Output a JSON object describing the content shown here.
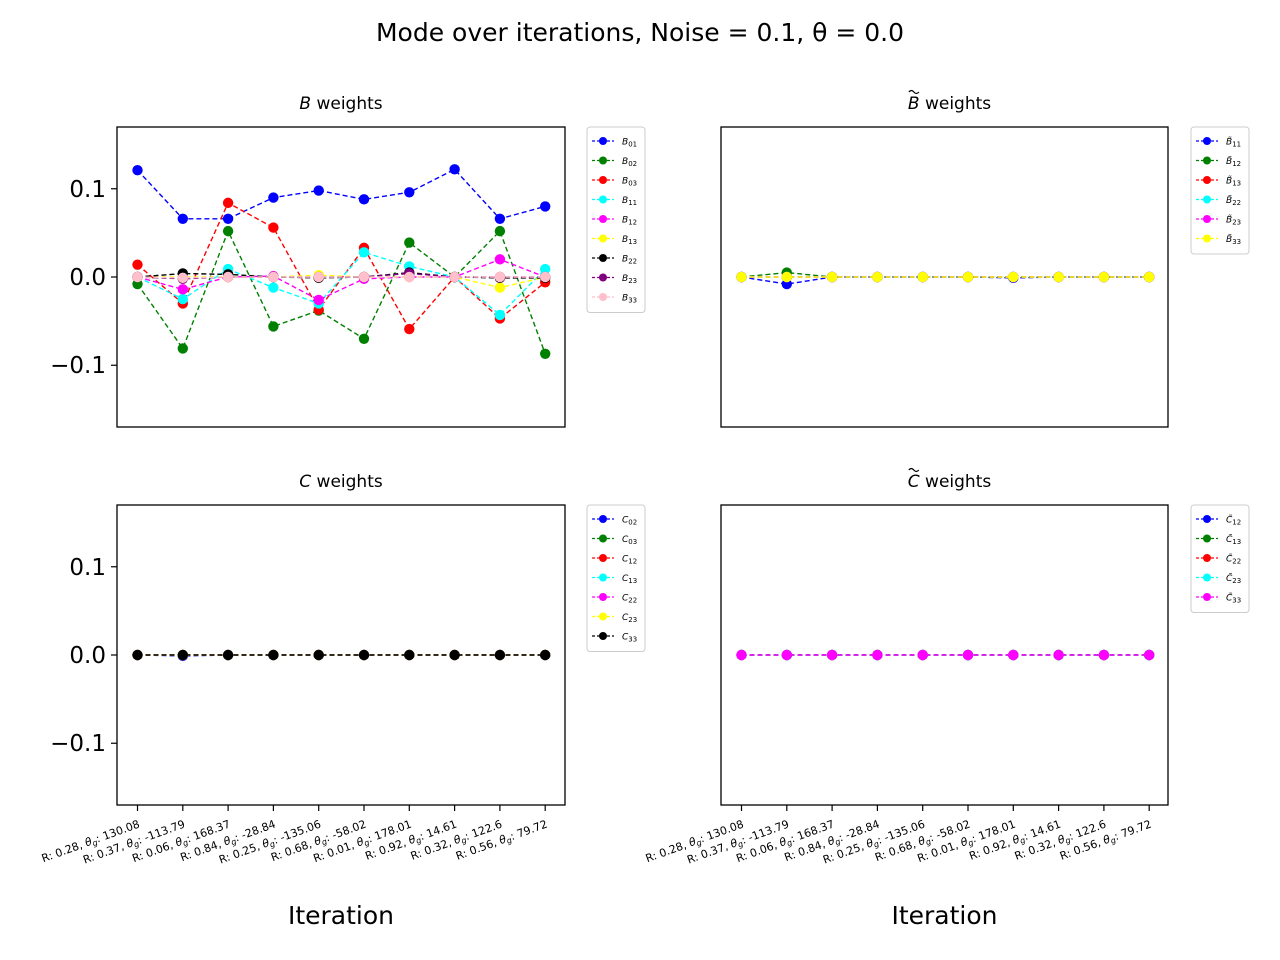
{
  "figure": {
    "title": "Mode over iterations, Noise = 0.1, θ = 0.0"
  },
  "chart_data": [
    {
      "id": "B",
      "type": "line",
      "title": "B weights",
      "title_sym": "B",
      "title_tilde": false,
      "title_rest": " weights",
      "xlabel": "",
      "ylabel": "",
      "ylim": [
        -0.17,
        0.17
      ],
      "yticks": [
        "0.1",
        "0.0",
        "−0.1"
      ],
      "ytick_values": [
        0.1,
        0.0,
        -0.1
      ],
      "show_xticklabels": false,
      "show_yticklabels": true,
      "legend_position": "outside-right",
      "categories": [
        "R: 0.28, θg: 130.08",
        "R: 0.37, θg: -113.79",
        "R: 0.06, θg: 168.37",
        "R: 0.84, θg: -28.84",
        "R: 0.25, θg: -135.06",
        "R: 0.68, θg: -58.02",
        "R: 0.01, θg: 178.01",
        "R: 0.92, θg: 14.61",
        "R: 0.32, θg: 122.6",
        "R: 0.56, θg: 79.72"
      ],
      "series": [
        {
          "name": "B01",
          "base": "B",
          "sub": "01",
          "tilde": false,
          "color": "#0000ff",
          "values": [
            0.121,
            0.066,
            0.066,
            0.09,
            0.098,
            0.088,
            0.096,
            0.122,
            0.066,
            0.08
          ]
        },
        {
          "name": "B02",
          "base": "B",
          "sub": "02",
          "tilde": false,
          "color": "#008000",
          "values": [
            -0.008,
            -0.081,
            0.052,
            -0.056,
            -0.038,
            -0.07,
            0.039,
            0.0,
            0.052,
            -0.087
          ]
        },
        {
          "name": "B03",
          "base": "B",
          "sub": "03",
          "tilde": false,
          "color": "#ff0000",
          "values": [
            0.014,
            -0.03,
            0.084,
            0.056,
            -0.037,
            0.033,
            -0.059,
            0.0,
            -0.047,
            -0.006
          ]
        },
        {
          "name": "B11",
          "base": "B",
          "sub": "11",
          "tilde": false,
          "color": "#00ffff",
          "values": [
            0.0,
            -0.025,
            0.009,
            -0.012,
            -0.03,
            0.028,
            0.012,
            0.0,
            -0.043,
            0.009
          ]
        },
        {
          "name": "B12",
          "base": "B",
          "sub": "12",
          "tilde": false,
          "color": "#ff00ff",
          "values": [
            0.0,
            -0.014,
            0.0,
            0.001,
            -0.026,
            -0.002,
            0.0,
            0.0,
            0.02,
            0.0
          ]
        },
        {
          "name": "B13",
          "base": "B",
          "sub": "13",
          "tilde": false,
          "color": "#ffff00",
          "values": [
            0.0,
            0.0,
            0.0,
            0.0,
            0.002,
            0.0,
            0.0,
            0.0,
            -0.012,
            0.0
          ]
        },
        {
          "name": "B22",
          "base": "B",
          "sub": "22",
          "tilde": false,
          "color": "#000000",
          "values": [
            0.0,
            0.004,
            0.003,
            0.0,
            -0.001,
            0.0,
            0.005,
            0.0,
            -0.001,
            -0.001
          ]
        },
        {
          "name": "B23",
          "base": "B",
          "sub": "23",
          "tilde": false,
          "color": "#800080",
          "values": [
            0.0,
            -0.002,
            0.0,
            0.0,
            0.0,
            0.0,
            0.004,
            0.0,
            0.0,
            0.0
          ]
        },
        {
          "name": "B33",
          "base": "B",
          "sub": "33",
          "tilde": false,
          "color": "#ffc0cb",
          "values": [
            0.0,
            -0.001,
            0.0,
            0.0,
            0.0,
            0.0,
            0.0,
            0.0,
            0.0,
            0.0
          ]
        }
      ]
    },
    {
      "id": "Bt",
      "type": "line",
      "title": "B̃ weights",
      "title_sym": "B",
      "title_tilde": true,
      "title_rest": " weights",
      "xlabel": "",
      "ylabel": "",
      "ylim": [
        -0.17,
        0.17
      ],
      "yticks": [],
      "ytick_values": [],
      "show_xticklabels": false,
      "show_yticklabels": false,
      "legend_position": "outside-right",
      "categories": [
        "R: 0.28, θg: 130.08",
        "R: 0.37, θg: -113.79",
        "R: 0.06, θg: 168.37",
        "R: 0.84, θg: -28.84",
        "R: 0.25, θg: -135.06",
        "R: 0.68, θg: -58.02",
        "R: 0.01, θg: 178.01",
        "R: 0.92, θg: 14.61",
        "R: 0.32, θg: 122.6",
        "R: 0.56, θg: 79.72"
      ],
      "series": [
        {
          "name": "B̃11",
          "base": "B",
          "sub": "11",
          "tilde": true,
          "color": "#0000ff",
          "values": [
            0.0,
            -0.008,
            0.0,
            0.0,
            0.0,
            0.0,
            -0.001,
            0.0,
            0.0,
            0.0
          ]
        },
        {
          "name": "B̃12",
          "base": "B",
          "sub": "12",
          "tilde": true,
          "color": "#008000",
          "values": [
            0.0,
            0.005,
            0.0,
            0.0,
            0.0,
            0.0,
            0.0,
            0.0,
            0.0,
            0.0
          ]
        },
        {
          "name": "B̃13",
          "base": "B",
          "sub": "13",
          "tilde": true,
          "color": "#ff0000",
          "values": [
            0.0,
            0.0,
            0.0,
            0.0,
            0.0,
            0.0,
            0.0,
            0.0,
            0.0,
            0.0
          ]
        },
        {
          "name": "B̃22",
          "base": "B",
          "sub": "22",
          "tilde": true,
          "color": "#00ffff",
          "values": [
            0.0,
            0.0,
            0.0,
            0.0,
            0.0,
            0.0,
            0.0,
            0.0,
            0.0,
            0.0
          ]
        },
        {
          "name": "B̃23",
          "base": "B",
          "sub": "23",
          "tilde": true,
          "color": "#ff00ff",
          "values": [
            0.0,
            0.0,
            0.0,
            0.0,
            0.0,
            0.0,
            0.0,
            0.0,
            0.0,
            0.0
          ]
        },
        {
          "name": "B̃33",
          "base": "B",
          "sub": "33",
          "tilde": true,
          "color": "#ffff00",
          "values": [
            0.0,
            0.0,
            0.0,
            0.0,
            0.0,
            0.0,
            0.0,
            0.0,
            0.0,
            0.0
          ]
        }
      ]
    },
    {
      "id": "C",
      "type": "line",
      "title": "C weights",
      "title_sym": "C",
      "title_tilde": false,
      "title_rest": " weights",
      "xlabel": "Iteration",
      "ylabel": "",
      "ylim": [
        -0.17,
        0.17
      ],
      "yticks": [
        "0.1",
        "0.0",
        "−0.1"
      ],
      "ytick_values": [
        0.1,
        0.0,
        -0.1
      ],
      "show_xticklabels": true,
      "show_yticklabels": true,
      "legend_position": "outside-right",
      "categories": [
        "R: 0.28, θg: 130.08",
        "R: 0.37, θg: -113.79",
        "R: 0.06, θg: 168.37",
        "R: 0.84, θg: -28.84",
        "R: 0.25, θg: -135.06",
        "R: 0.68, θg: -58.02",
        "R: 0.01, θg: 178.01",
        "R: 0.92, θg: 14.61",
        "R: 0.32, θg: 122.6",
        "R: 0.56, θg: 79.72"
      ],
      "series": [
        {
          "name": "C02",
          "base": "C",
          "sub": "02",
          "tilde": false,
          "color": "#0000ff",
          "values": [
            0.0,
            -0.001,
            0.0,
            0.0,
            0.0,
            0.0,
            0.0,
            0.0,
            0.0,
            0.0
          ]
        },
        {
          "name": "C03",
          "base": "C",
          "sub": "03",
          "tilde": false,
          "color": "#008000",
          "values": [
            0.0,
            0.0,
            0.0,
            0.0,
            0.0,
            0.0,
            0.0,
            0.0,
            0.0,
            0.0
          ]
        },
        {
          "name": "C12",
          "base": "C",
          "sub": "12",
          "tilde": false,
          "color": "#ff0000",
          "values": [
            0.0,
            0.0,
            0.0,
            0.0,
            0.0,
            0.0,
            0.0,
            0.0,
            0.0,
            0.0
          ]
        },
        {
          "name": "C13",
          "base": "C",
          "sub": "13",
          "tilde": false,
          "color": "#00ffff",
          "values": [
            0.0,
            0.0,
            0.0,
            0.0,
            0.0,
            0.0,
            0.0,
            0.0,
            0.0,
            0.0
          ]
        },
        {
          "name": "C22",
          "base": "C",
          "sub": "22",
          "tilde": false,
          "color": "#ff00ff",
          "values": [
            0.0,
            0.0,
            0.0,
            0.0,
            0.0,
            0.0,
            0.0,
            0.0,
            0.0,
            0.0
          ]
        },
        {
          "name": "C23",
          "base": "C",
          "sub": "23",
          "tilde": false,
          "color": "#ffff00",
          "values": [
            0.0,
            0.0,
            0.0,
            0.0,
            0.0,
            0.0,
            0.0,
            0.0,
            0.0,
            0.0
          ]
        },
        {
          "name": "C33",
          "base": "C",
          "sub": "33",
          "tilde": false,
          "color": "#000000",
          "values": [
            0.0,
            0.0,
            0.0,
            0.0,
            0.0,
            0.0,
            0.0,
            0.0,
            0.0,
            0.0
          ]
        }
      ]
    },
    {
      "id": "Ct",
      "type": "line",
      "title": "C̃ weights",
      "title_sym": "C",
      "title_tilde": true,
      "title_rest": " weights",
      "xlabel": "Iteration",
      "ylabel": "",
      "ylim": [
        -0.17,
        0.17
      ],
      "yticks": [],
      "ytick_values": [],
      "show_xticklabels": true,
      "show_yticklabels": false,
      "legend_position": "outside-right",
      "categories": [
        "R: 0.28, θg: 130.08",
        "R: 0.37, θg: -113.79",
        "R: 0.06, θg: 168.37",
        "R: 0.84, θg: -28.84",
        "R: 0.25, θg: -135.06",
        "R: 0.68, θg: -58.02",
        "R: 0.01, θg: 178.01",
        "R: 0.92, θg: 14.61",
        "R: 0.32, θg: 122.6",
        "R: 0.56, θg: 79.72"
      ],
      "series": [
        {
          "name": "C̃12",
          "base": "C",
          "sub": "12",
          "tilde": true,
          "color": "#0000ff",
          "values": [
            0.0,
            0.0,
            0.0,
            0.0,
            0.0,
            0.0,
            0.0,
            0.0,
            0.0,
            0.0
          ]
        },
        {
          "name": "C̃13",
          "base": "C",
          "sub": "13",
          "tilde": true,
          "color": "#008000",
          "values": [
            0.0,
            0.0,
            0.0,
            0.0,
            0.0,
            0.0,
            0.0,
            0.0,
            0.0,
            0.0
          ]
        },
        {
          "name": "C̃22",
          "base": "C",
          "sub": "22",
          "tilde": true,
          "color": "#ff0000",
          "values": [
            0.0,
            0.0,
            0.0,
            0.0,
            0.0,
            0.0,
            0.0,
            0.0,
            0.0,
            0.0
          ]
        },
        {
          "name": "C̃23",
          "base": "C",
          "sub": "23",
          "tilde": true,
          "color": "#00ffff",
          "values": [
            0.0,
            0.0,
            0.0,
            0.0,
            0.0,
            0.0,
            0.0,
            0.0,
            0.0,
            0.0
          ]
        },
        {
          "name": "C̃33",
          "base": "C",
          "sub": "33",
          "tilde": true,
          "color": "#ff00ff",
          "values": [
            0.0,
            0.0,
            0.0,
            0.0,
            0.0,
            0.0,
            0.0,
            0.0,
            0.0,
            0.0
          ]
        }
      ]
    }
  ]
}
